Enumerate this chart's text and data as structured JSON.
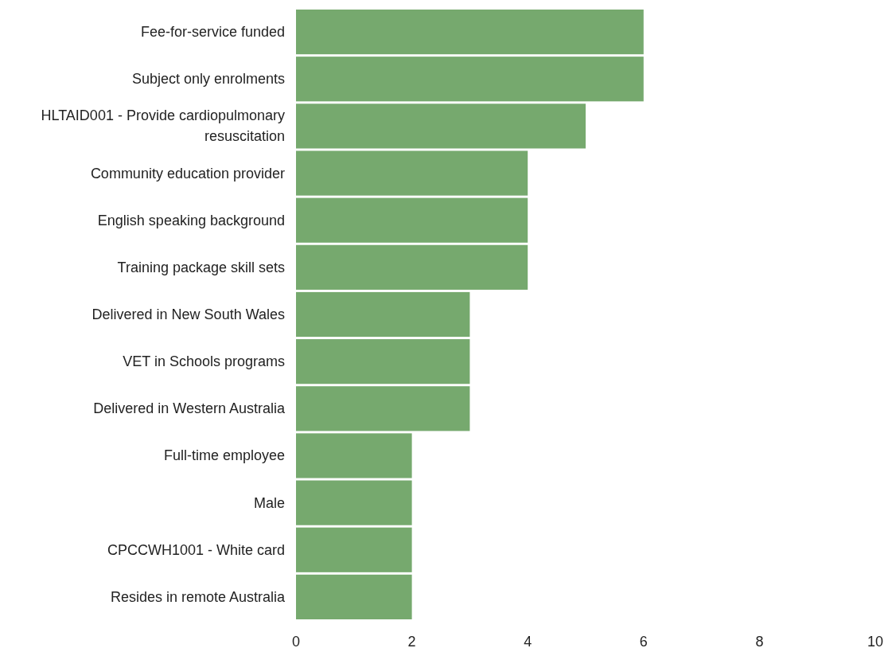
{
  "chart_data": {
    "type": "bar",
    "orientation": "horizontal",
    "categories": [
      "Fee-for-service funded",
      "Subject only enrolments",
      "HLTAID001 - Provide cardiopulmonary resuscitation",
      "Community education provider",
      "English speaking background",
      "Training package skill sets",
      "Delivered in New South Wales",
      "VET in Schools programs",
      "Delivered in Western Australia",
      "Full-time employee",
      "Male",
      "CPCCWH1001 - White card",
      "Resides in remote Australia"
    ],
    "values": [
      6,
      6,
      5,
      4,
      4,
      4,
      3,
      3,
      3,
      2,
      2,
      2,
      2
    ],
    "color": "#76a96e",
    "xlim": [
      0,
      10
    ],
    "xticks": [
      0,
      2,
      4,
      6,
      8,
      10
    ],
    "grid": false
  }
}
